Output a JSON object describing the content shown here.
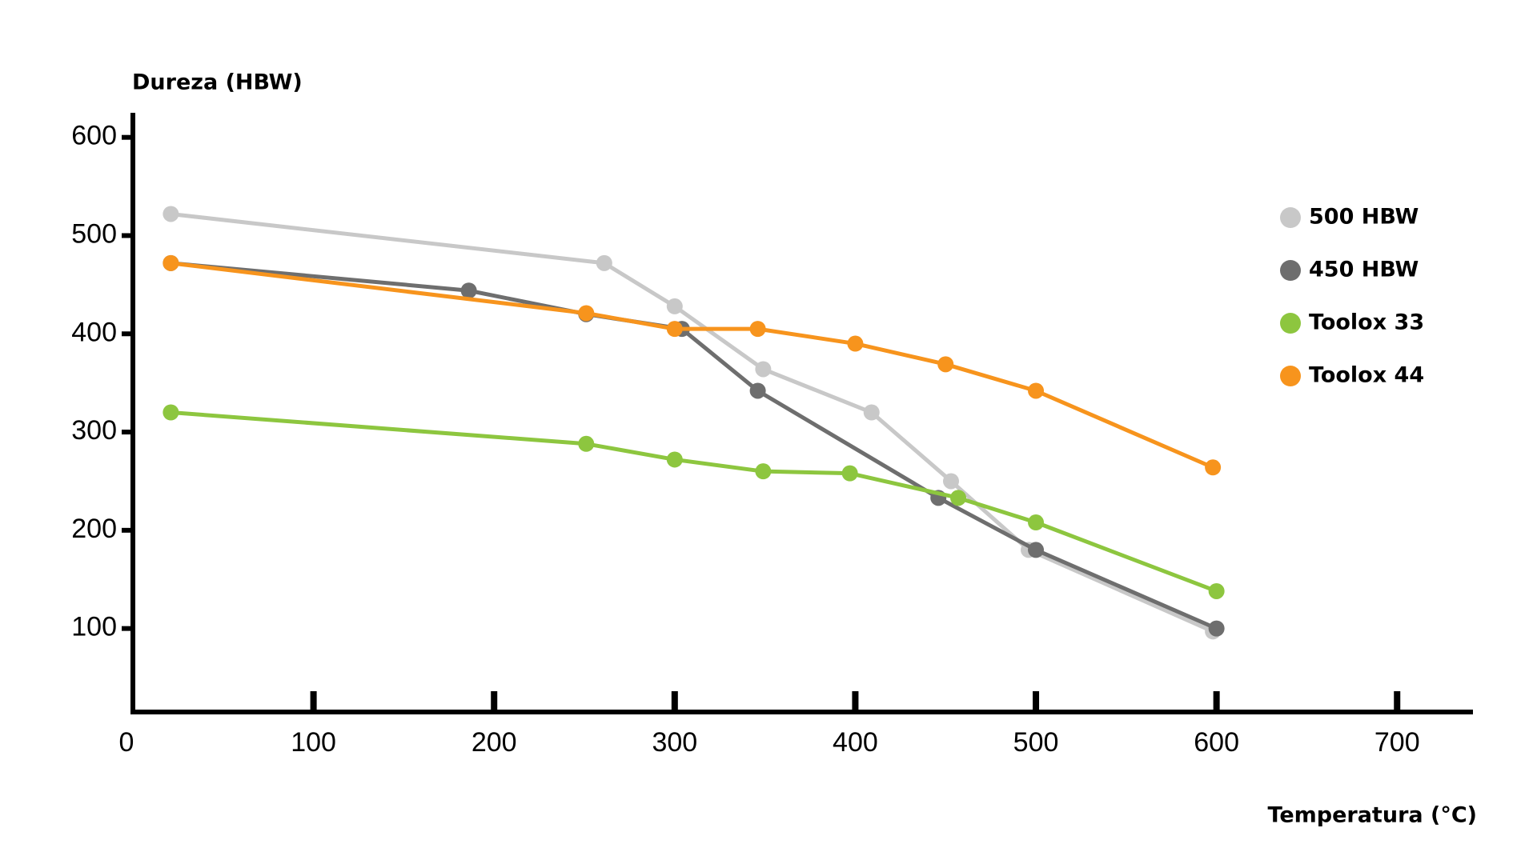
{
  "chart_data": {
    "type": "line",
    "y_label": "Dureza (HBW)",
    "x_label": "Temperatura (°C)",
    "xlim": [
      0,
      742
    ],
    "ylim": [
      15,
      625
    ],
    "xticks": [
      0,
      100,
      200,
      300,
      400,
      500,
      600,
      700
    ],
    "yticks": [
      100,
      200,
      300,
      400,
      500,
      600
    ],
    "grid": false,
    "legend": "right",
    "series": [
      {
        "name": "500 HBW",
        "color": "#c8c8c8",
        "x": [
          21,
          261,
          300,
          349,
          409,
          453,
          496,
          598
        ],
        "values": [
          522,
          472,
          428,
          364,
          320,
          250,
          180,
          97
        ]
      },
      {
        "name": "450 HBW",
        "color": "#6e6e6e",
        "x": [
          21,
          186,
          251,
          304,
          346,
          446,
          500,
          600
        ],
        "values": [
          472,
          444,
          420,
          405,
          342,
          233,
          180,
          100
        ]
      },
      {
        "name": "Toolox 33",
        "color": "#8dc63f",
        "x": [
          21,
          251,
          300,
          349,
          397,
          457,
          500,
          600
        ],
        "values": [
          320,
          288,
          272,
          260,
          258,
          233,
          208,
          138
        ]
      },
      {
        "name": "Toolox 44",
        "color": "#f7941d",
        "x": [
          21,
          251,
          300,
          346,
          400,
          450,
          500,
          598
        ],
        "values": [
          472,
          421,
          405,
          405,
          390,
          369,
          342,
          264
        ]
      }
    ]
  }
}
